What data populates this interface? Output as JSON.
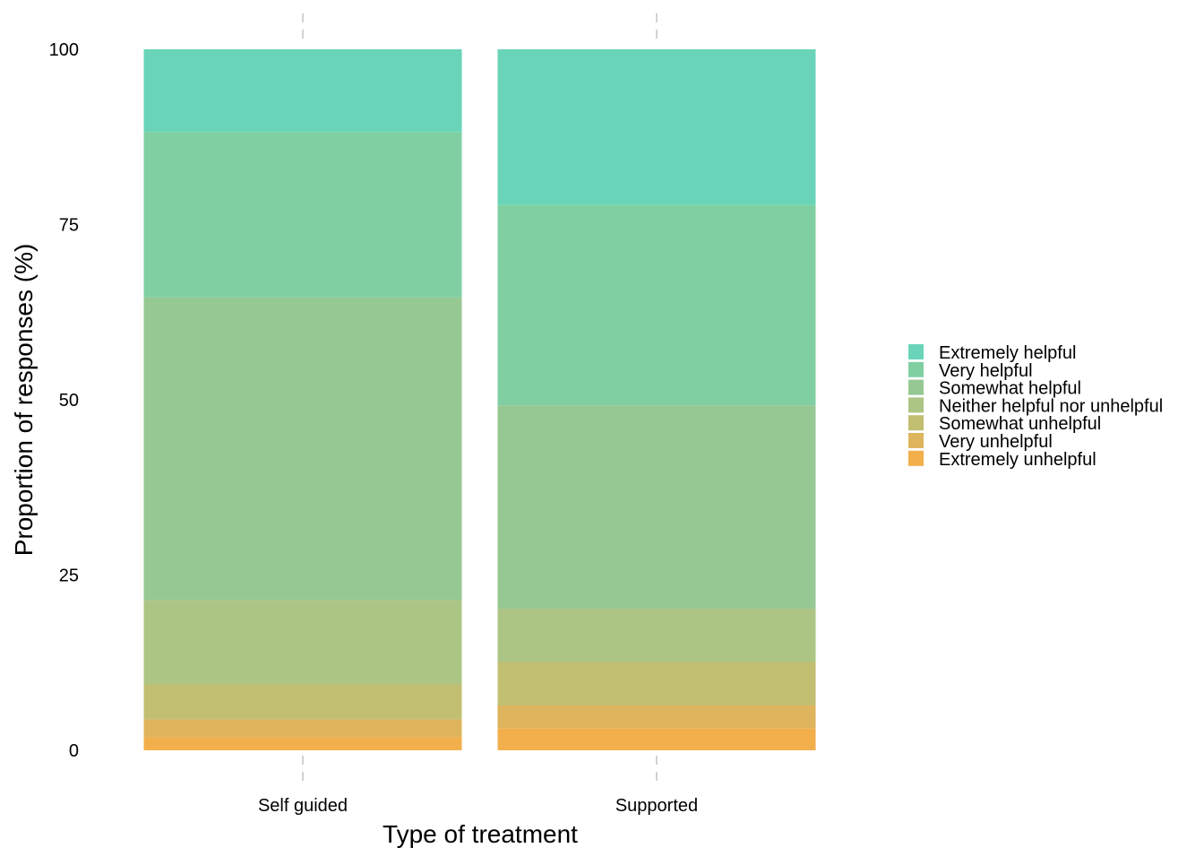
{
  "chart_data": {
    "type": "bar",
    "stacked": true,
    "orientation": "vertical",
    "xlabel": "Type of treatment",
    "ylabel": "Proportion of responses (%)",
    "ylim": [
      0,
      100
    ],
    "y_ticks": [
      0,
      25,
      50,
      75,
      100
    ],
    "categories": [
      "Self guided",
      "Supported"
    ],
    "grid": false,
    "legend_placement": "right",
    "series": [
      {
        "name": "Extremely unhelpful",
        "color": "#F2AF4C",
        "values": [
          1.9,
          3.1
        ]
      },
      {
        "name": "Very unhelpful",
        "color": "#DEB45C",
        "values": [
          2.5,
          3.3
        ]
      },
      {
        "name": "Somewhat unhelpful",
        "color": "#C2BE72",
        "values": [
          5.0,
          6.2
        ]
      },
      {
        "name": "Neither helpful nor unhelpful",
        "color": "#ACC584",
        "values": [
          12.0,
          7.6
        ]
      },
      {
        "name": "Somewhat helpful",
        "color": "#96C893",
        "values": [
          43.2,
          29.0
        ]
      },
      {
        "name": "Very helpful",
        "color": "#80CFA3",
        "values": [
          23.6,
          28.6
        ]
      },
      {
        "name": "Extremely helpful",
        "color": "#6AD4B8",
        "values": [
          11.8,
          22.2
        ]
      }
    ]
  }
}
